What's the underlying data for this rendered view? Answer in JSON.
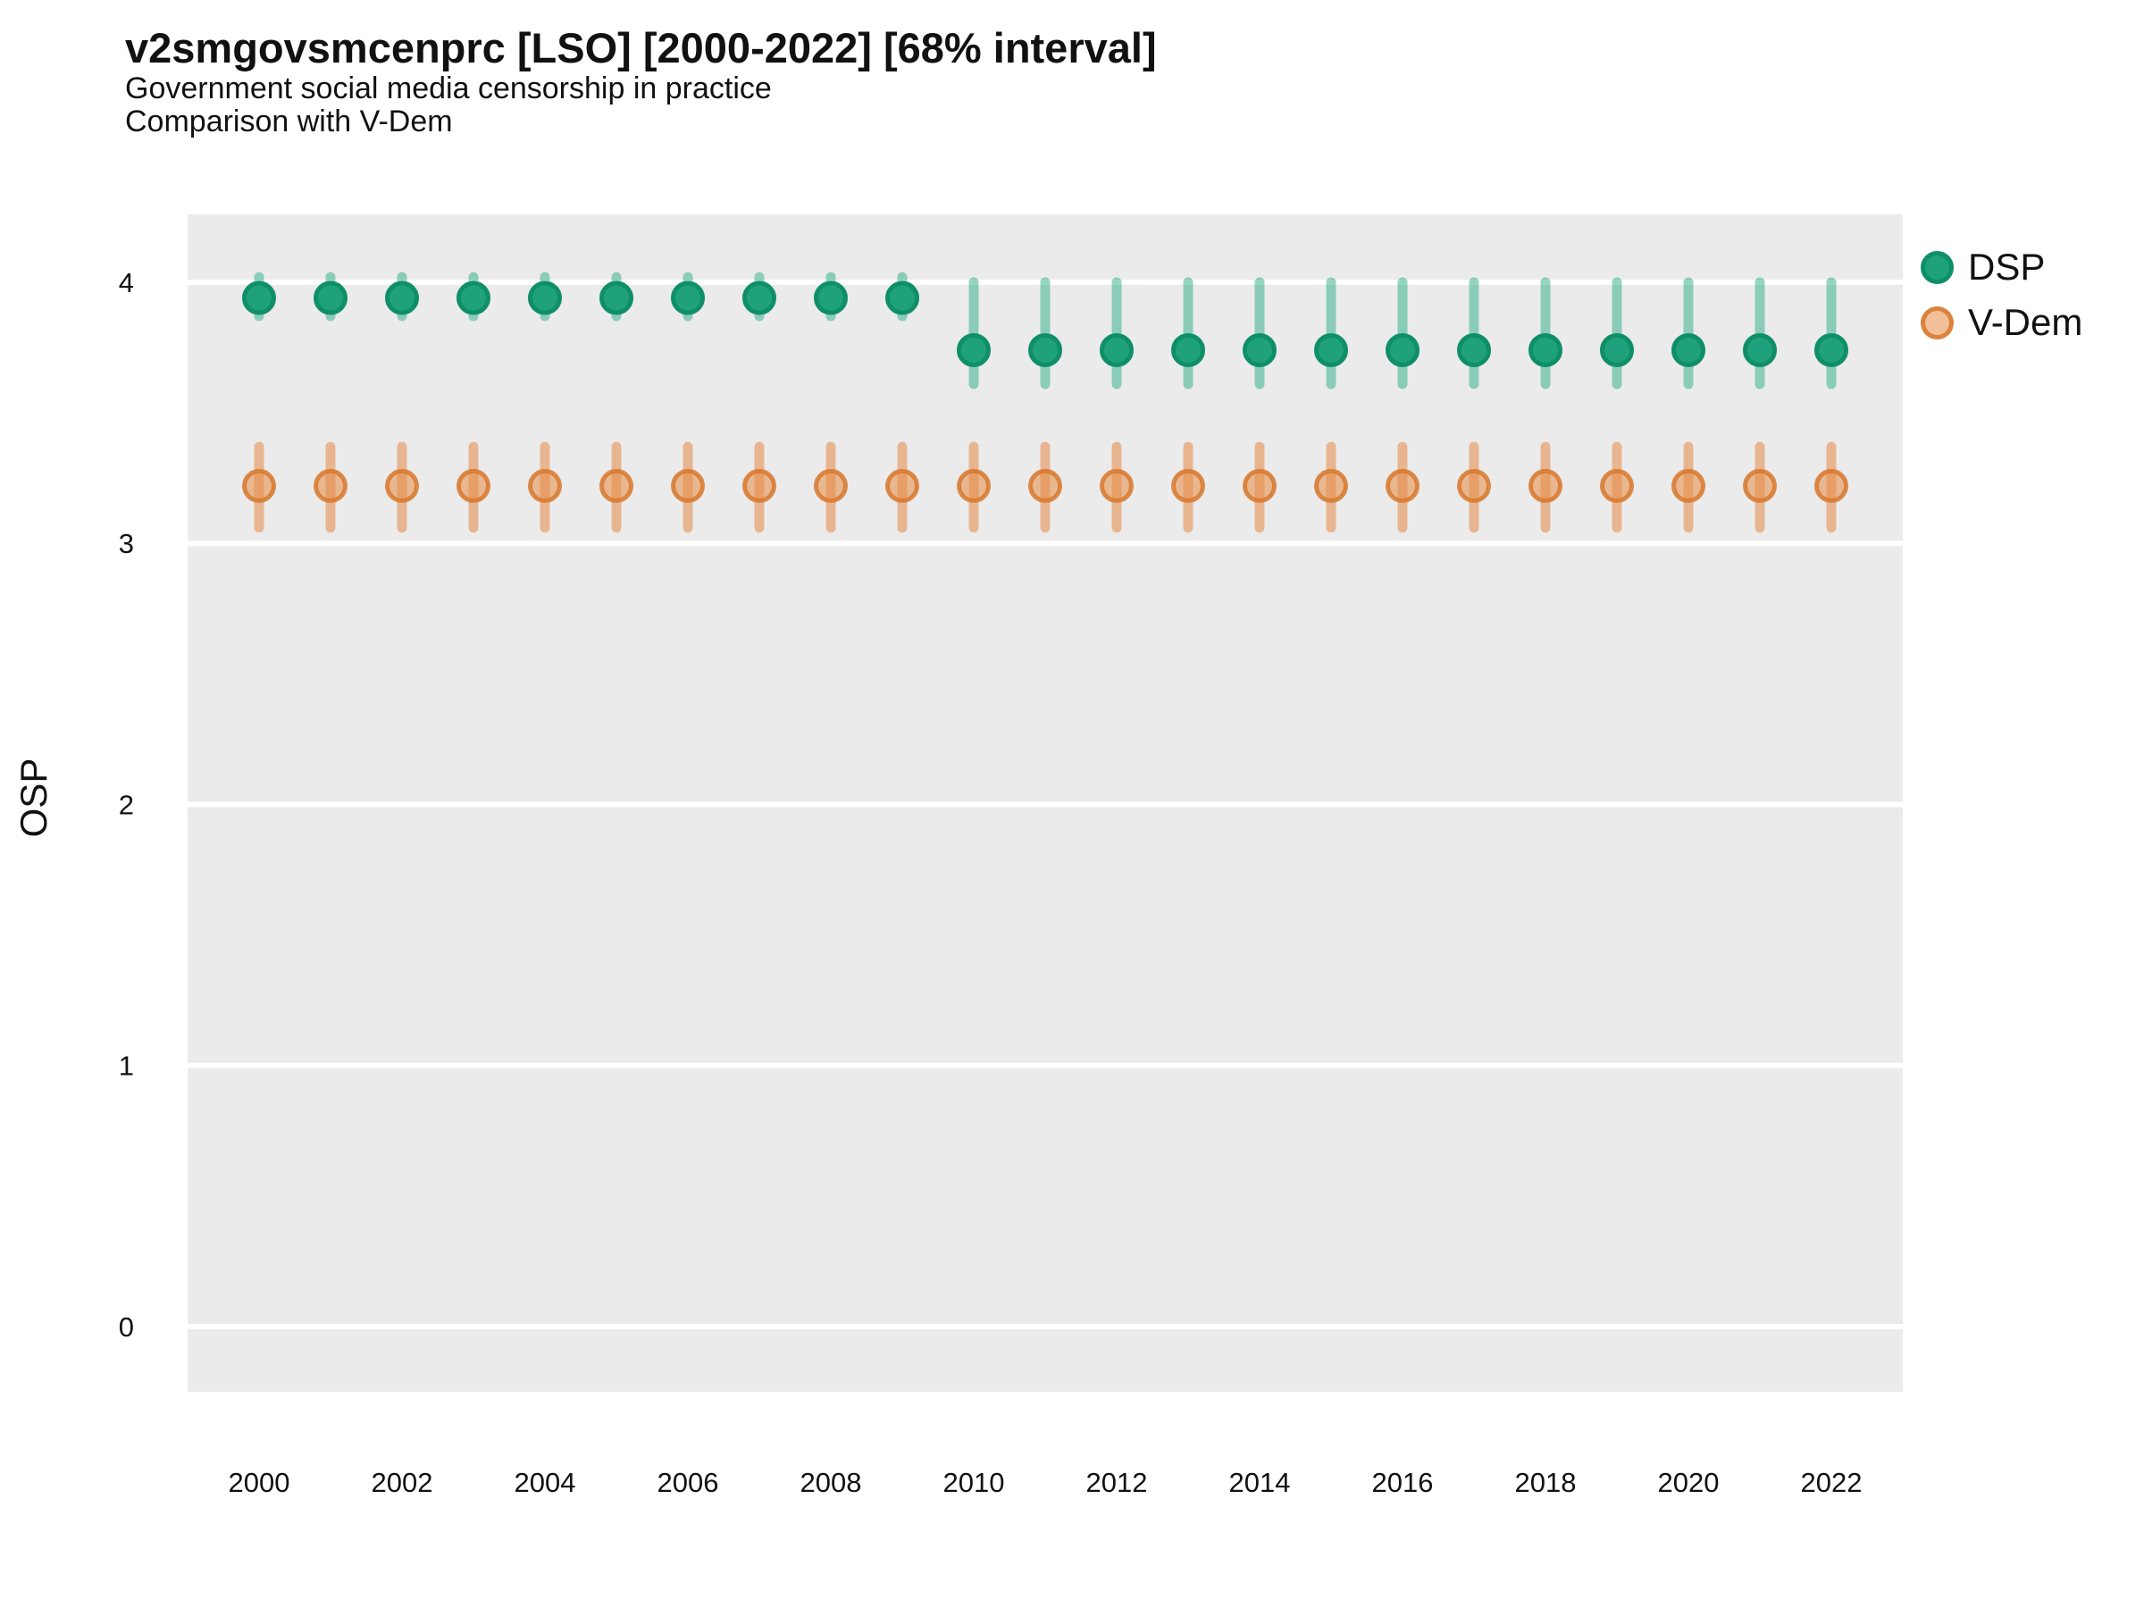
{
  "chart_data": {
    "type": "scatter",
    "subtype": "pointrange",
    "title": "v2smgovsmcenprc [LSO] [2000-2022] [68% interval]",
    "subtitle_line1": "Government social media censorship in practice",
    "subtitle_line2": "Comparison with V-Dem",
    "ylabel": "OSP",
    "xlabel": "",
    "interval_label": "68% interval",
    "xlim": [
      1999,
      2023
    ],
    "ylim": [
      -0.25,
      4.26
    ],
    "x_ticks": [
      2000,
      2002,
      2004,
      2006,
      2008,
      2010,
      2012,
      2014,
      2016,
      2018,
      2020,
      2022
    ],
    "y_ticks": [
      0,
      1,
      2,
      3,
      4
    ],
    "grid": "major-horizontal-white-on-gray",
    "legend_position": "right-top",
    "colors": {
      "panel_background": "#ebebeb",
      "gridline": "#ffffff",
      "text": "#111111"
    },
    "years": [
      2000,
      2001,
      2002,
      2003,
      2004,
      2005,
      2006,
      2007,
      2008,
      2009,
      2010,
      2011,
      2012,
      2013,
      2014,
      2015,
      2016,
      2017,
      2018,
      2019,
      2020,
      2021,
      2022
    ],
    "series": [
      {
        "id": "dsp",
        "name": "DSP",
        "color": "#1b9e77",
        "point_fill": "#1fa17c",
        "point_stroke": "#0f8f68",
        "bar_color": "rgba(32,170,125,0.48)",
        "est": [
          3.94,
          3.94,
          3.94,
          3.94,
          3.94,
          3.94,
          3.94,
          3.94,
          3.94,
          3.94,
          3.74,
          3.74,
          3.74,
          3.74,
          3.74,
          3.74,
          3.74,
          3.74,
          3.74,
          3.74,
          3.74,
          3.74,
          3.74
        ],
        "lo": [
          3.87,
          3.87,
          3.87,
          3.87,
          3.87,
          3.87,
          3.87,
          3.87,
          3.87,
          3.87,
          3.61,
          3.61,
          3.61,
          3.61,
          3.61,
          3.61,
          3.61,
          3.61,
          3.61,
          3.61,
          3.61,
          3.61,
          3.61
        ],
        "hi": [
          4.02,
          4.02,
          4.02,
          4.02,
          4.02,
          4.02,
          4.02,
          4.02,
          4.02,
          4.02,
          4.0,
          4.0,
          4.0,
          4.0,
          4.0,
          4.0,
          4.0,
          4.0,
          4.0,
          4.0,
          4.0,
          4.0,
          4.0
        ]
      },
      {
        "id": "vdem",
        "name": "V-Dem",
        "color": "#e0823c",
        "point_fill": "rgba(229,140,70,0.55)",
        "point_stroke": "rgba(215,120,45,0.85)",
        "bar_color": "rgba(229,128,55,0.5)",
        "est": [
          3.22,
          3.22,
          3.22,
          3.22,
          3.22,
          3.22,
          3.22,
          3.22,
          3.22,
          3.22,
          3.22,
          3.22,
          3.22,
          3.22,
          3.22,
          3.22,
          3.22,
          3.22,
          3.22,
          3.22,
          3.22,
          3.22,
          3.22
        ],
        "lo": [
          3.06,
          3.06,
          3.06,
          3.06,
          3.06,
          3.06,
          3.06,
          3.06,
          3.06,
          3.06,
          3.06,
          3.06,
          3.06,
          3.06,
          3.06,
          3.06,
          3.06,
          3.06,
          3.06,
          3.06,
          3.06,
          3.06,
          3.06
        ],
        "hi": [
          3.37,
          3.37,
          3.37,
          3.37,
          3.37,
          3.37,
          3.37,
          3.37,
          3.37,
          3.37,
          3.37,
          3.37,
          3.37,
          3.37,
          3.37,
          3.37,
          3.37,
          3.37,
          3.37,
          3.37,
          3.37,
          3.37,
          3.37
        ]
      }
    ]
  }
}
